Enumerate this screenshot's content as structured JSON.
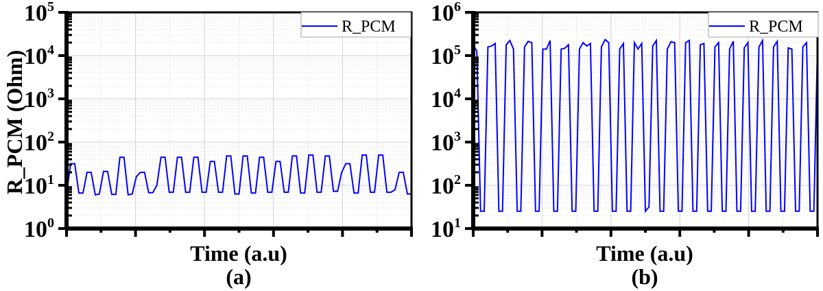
{
  "chart_data": [
    {
      "type": "line",
      "panel_label": "(a)",
      "title": "",
      "xlabel": "Time (a.u)",
      "ylabel": "R_PCM (Ohm)",
      "yscale": "log",
      "ylim": [
        1,
        100000
      ],
      "y_ticks": [
        "10^0",
        "10^1",
        "10^2",
        "10^3",
        "10^4",
        "10^5"
      ],
      "x_ticks_labeled": false,
      "grid": true,
      "legend": {
        "entries": [
          "R_PCM"
        ],
        "position": "upper right"
      },
      "series": [
        {
          "name": "R_PCM",
          "color": "#0000ff",
          "log10_values": [
            0.8,
            1.5,
            1.5,
            0.82,
            0.82,
            1.3,
            1.3,
            0.78,
            0.8,
            1.32,
            1.32,
            0.79,
            0.79,
            1.65,
            1.65,
            0.78,
            0.8,
            1.2,
            1.3,
            1.3,
            0.83,
            0.83,
            1.0,
            1.65,
            1.65,
            0.84,
            0.84,
            1.65,
            1.65,
            0.84,
            0.84,
            1.65,
            1.65,
            0.84,
            0.84,
            1.55,
            1.55,
            0.84,
            0.84,
            1.68,
            1.68,
            0.8,
            0.8,
            1.68,
            1.68,
            0.82,
            0.82,
            1.65,
            1.65,
            0.84,
            0.84,
            1.55,
            1.55,
            0.84,
            0.84,
            1.68,
            1.68,
            0.82,
            0.82,
            1.7,
            1.7,
            0.84,
            0.84,
            1.68,
            1.68,
            0.86,
            0.86,
            1.3,
            1.5,
            1.5,
            0.82,
            0.82,
            1.7,
            1.7,
            0.84,
            0.84,
            1.7,
            1.7,
            0.84,
            0.84,
            0.9,
            1.3,
            1.3,
            0.8,
            0.8
          ]
        }
      ]
    },
    {
      "type": "line",
      "panel_label": "(b)",
      "title": "",
      "xlabel": "Time (a.u)",
      "ylabel": "",
      "yscale": "log",
      "ylim": [
        10,
        1000000
      ],
      "y_ticks": [
        "10^1",
        "10^2",
        "10^3",
        "10^4",
        "10^5",
        "10^6"
      ],
      "x_ticks_labeled": false,
      "grid": true,
      "legend": {
        "entries": [
          "R_PCM"
        ],
        "position": "upper right"
      },
      "series": [
        {
          "name": "R_PCM",
          "color": "#0000ff",
          "log10_values": [
            5.25,
            5.1,
            1.4,
            1.4,
            5.2,
            5.22,
            5.28,
            1.4,
            1.4,
            5.25,
            5.35,
            5.15,
            1.4,
            1.4,
            5.2,
            5.33,
            5.3,
            1.4,
            1.4,
            5.15,
            5.15,
            5.35,
            1.4,
            1.4,
            5.15,
            5.17,
            5.25,
            1.4,
            1.4,
            5.15,
            5.3,
            5.22,
            5.28,
            1.4,
            1.4,
            5.2,
            5.37,
            5.3,
            1.4,
            1.4,
            5.15,
            5.28,
            1.4,
            1.4,
            5.3,
            5.15,
            5.28,
            1.4,
            1.5,
            5.22,
            5.35,
            1.4,
            1.4,
            5.15,
            5.32,
            5.3,
            1.4,
            1.4,
            5.3,
            5.35,
            1.4,
            1.4,
            5.25,
            5.28,
            1.4,
            1.4,
            5.2,
            5.3,
            1.4,
            1.4,
            5.15,
            5.33,
            1.4,
            1.4,
            5.18,
            5.3,
            1.4,
            1.4,
            5.2,
            5.35,
            1.4,
            1.4,
            5.2,
            5.33,
            1.4,
            1.4,
            5.18,
            5.15,
            1.4,
            1.4,
            5.2,
            5.3,
            1.4,
            1.4,
            5.25
          ]
        }
      ]
    }
  ],
  "labels": {
    "a": {
      "ylabel": "R_PCM (Ohm)",
      "xlabel": "Time (a.u)",
      "panel": "(a)",
      "legend": "R_PCM",
      "yticks": [
        {
          "base": "10",
          "exp": "0"
        },
        {
          "base": "10",
          "exp": "1"
        },
        {
          "base": "10",
          "exp": "2"
        },
        {
          "base": "10",
          "exp": "3"
        },
        {
          "base": "10",
          "exp": "4"
        },
        {
          "base": "10",
          "exp": "5"
        }
      ]
    },
    "b": {
      "xlabel": "Time (a.u)",
      "panel": "(b)",
      "legend": "R_PCM",
      "yticks": [
        {
          "base": "10",
          "exp": "1"
        },
        {
          "base": "10",
          "exp": "2"
        },
        {
          "base": "10",
          "exp": "3"
        },
        {
          "base": "10",
          "exp": "4"
        },
        {
          "base": "10",
          "exp": "5"
        },
        {
          "base": "10",
          "exp": "6"
        }
      ]
    }
  },
  "colors": {
    "line": "#0000ff",
    "axis": "#000000",
    "grid_major": "#d0d0d0",
    "grid_minor": "#e8e8e8",
    "legend_border": "#a0a0a0"
  }
}
